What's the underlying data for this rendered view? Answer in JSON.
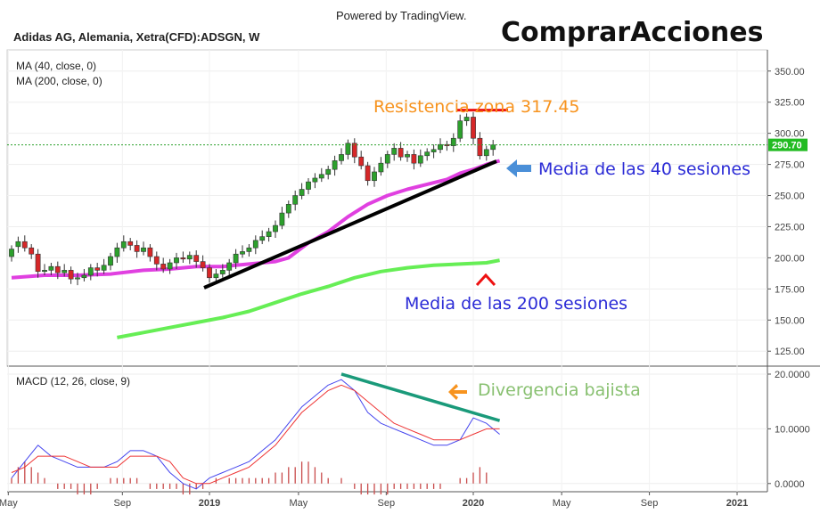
{
  "header": {
    "powered_by": "Powered by TradingView.",
    "brand": "ComprarAcciones",
    "symbol_title": "Adidas AG, Alemania, Xetra(CFD):ADSGN, W"
  },
  "indicators": {
    "ma40_label": "MA (40, close, 0)",
    "ma200_label": "MA (200, close, 0)",
    "macd_label": "MACD (12, 26, close, 9)"
  },
  "annotations": {
    "resistance": "Resistencia zona 317.45",
    "ma40_note": "Media de las 40 sesiones",
    "ma200_note": "Media de las 200 sesiones",
    "divergence": "Divergencia bajista"
  },
  "price_badge": "290.70",
  "colors": {
    "up": "#2ca02c",
    "down": "#d62728",
    "ma40": "#e040e0",
    "ma200": "#66ee55",
    "resistance": "#ee1111",
    "trendline": "#000000",
    "macd_line": "#4444ee",
    "signal_line": "#ee3333",
    "divergence_line": "#1a9a7a",
    "orange": "#f7931e",
    "blue_arrow": "#4a8fd8",
    "note_blue": "#2b2bd6",
    "note_green": "#88c070"
  },
  "chart_data": [
    {
      "type": "candlestick",
      "title": "Adidas AG, Alemania, Xetra(CFD):ADSGN, W",
      "x_tick_labels": [
        "May",
        "Sep",
        "2019",
        "May",
        "Sep",
        "2020",
        "May",
        "Sep",
        "2021"
      ],
      "y_ticks": [
        125.0,
        150.0,
        175.0,
        200.0,
        225.0,
        250.0,
        275.0,
        300.0,
        325.0,
        350.0
      ],
      "ylim": [
        113,
        367
      ],
      "last_price": 290.7,
      "resistance_level": 317.45,
      "series": [
        {
          "name": "MA (40, close, 0)",
          "values": [
            [
              0,
              184
            ],
            [
              5,
              186
            ],
            [
              10,
              186
            ],
            [
              15,
              187
            ],
            [
              20,
              190
            ],
            [
              24,
              191
            ],
            [
              28,
              193
            ],
            [
              32,
              193
            ],
            [
              36,
              195
            ],
            [
              40,
              197
            ],
            [
              42,
              200
            ],
            [
              45,
              212
            ],
            [
              48,
              221
            ],
            [
              51,
              233
            ],
            [
              54,
              243
            ],
            [
              57,
              250
            ],
            [
              60,
              255
            ],
            [
              63,
              259
            ],
            [
              66,
              263
            ],
            [
              68,
              268
            ],
            [
              70,
              271
            ],
            [
              72,
              275
            ],
            [
              74,
              278
            ]
          ]
        },
        {
          "name": "MA (200, close, 0)",
          "values": [
            [
              16,
              136
            ],
            [
              20,
              140
            ],
            [
              24,
              144
            ],
            [
              28,
              148
            ],
            [
              32,
              152
            ],
            [
              36,
              157
            ],
            [
              40,
              164
            ],
            [
              44,
              171
            ],
            [
              48,
              177
            ],
            [
              52,
              184
            ],
            [
              56,
              189
            ],
            [
              60,
              192
            ],
            [
              64,
              194
            ],
            [
              68,
              195
            ],
            [
              72,
              196
            ],
            [
              74,
              198
            ]
          ]
        }
      ],
      "candles": [
        [
          201,
          207
        ],
        [
          209,
          213
        ],
        [
          213,
          208
        ],
        [
          208,
          203
        ],
        [
          203,
          189
        ],
        [
          189,
          190
        ],
        [
          190,
          193
        ],
        [
          193,
          188
        ],
        [
          188,
          190
        ],
        [
          190,
          183
        ],
        [
          183,
          184
        ],
        [
          184,
          186
        ],
        [
          186,
          192
        ],
        [
          192,
          190
        ],
        [
          190,
          194
        ],
        [
          194,
          201
        ],
        [
          201,
          208
        ],
        [
          208,
          213
        ],
        [
          213,
          210
        ],
        [
          210,
          205
        ],
        [
          205,
          208
        ],
        [
          208,
          201
        ],
        [
          201,
          195
        ],
        [
          195,
          191
        ],
        [
          191,
          196
        ],
        [
          196,
          200
        ],
        [
          200,
          199
        ],
        [
          199,
          202
        ],
        [
          202,
          197
        ],
        [
          197,
          192
        ],
        [
          192,
          184
        ],
        [
          184,
          187
        ],
        [
          187,
          190
        ],
        [
          190,
          196
        ],
        [
          196,
          203
        ],
        [
          203,
          205
        ],
        [
          205,
          208
        ],
        [
          208,
          214
        ],
        [
          214,
          217
        ],
        [
          217,
          221
        ],
        [
          221,
          226
        ],
        [
          226,
          236
        ],
        [
          236,
          243
        ],
        [
          243,
          250
        ],
        [
          250,
          255
        ],
        [
          255,
          261
        ],
        [
          261,
          264
        ],
        [
          264,
          267
        ],
        [
          267,
          271
        ],
        [
          271,
          278
        ],
        [
          278,
          283
        ],
        [
          283,
          292
        ],
        [
          292,
          281
        ],
        [
          281,
          274
        ],
        [
          274,
          262
        ],
        [
          262,
          269
        ],
        [
          269,
          276
        ],
        [
          276,
          283
        ],
        [
          283,
          288
        ],
        [
          288,
          281
        ],
        [
          281,
          283
        ],
        [
          283,
          276
        ],
        [
          276,
          282
        ],
        [
          282,
          285
        ],
        [
          285,
          287
        ],
        [
          287,
          291
        ],
        [
          291,
          290
        ],
        [
          290,
          296
        ],
        [
          296,
          310
        ],
        [
          310,
          313
        ],
        [
          313,
          296
        ],
        [
          296,
          282
        ],
        [
          282,
          287
        ],
        [
          287,
          290.7
        ]
      ]
    },
    {
      "type": "line",
      "title": "MACD (12, 26, close, 9)",
      "y_ticks": [
        0.0,
        10.0,
        20.0
      ],
      "ylim": [
        -1.5,
        21.3
      ],
      "series": [
        {
          "name": "MACD",
          "values": [
            [
              0,
              1
            ],
            [
              2,
              4
            ],
            [
              4,
              7
            ],
            [
              6,
              5
            ],
            [
              8,
              4
            ],
            [
              10,
              3
            ],
            [
              12,
              3
            ],
            [
              14,
              3
            ],
            [
              16,
              4
            ],
            [
              18,
              6
            ],
            [
              20,
              6
            ],
            [
              22,
              5
            ],
            [
              24,
              2
            ],
            [
              26,
              0
            ],
            [
              28,
              -1
            ],
            [
              30,
              1
            ],
            [
              32,
              2
            ],
            [
              34,
              3
            ],
            [
              36,
              4
            ],
            [
              38,
              6
            ],
            [
              40,
              8
            ],
            [
              42,
              11
            ],
            [
              44,
              14
            ],
            [
              46,
              16
            ],
            [
              48,
              18
            ],
            [
              50,
              19
            ],
            [
              52,
              17
            ],
            [
              54,
              13
            ],
            [
              56,
              11
            ],
            [
              58,
              10
            ],
            [
              60,
              9
            ],
            [
              62,
              8
            ],
            [
              64,
              7
            ],
            [
              66,
              7
            ],
            [
              68,
              8
            ],
            [
              70,
              12
            ],
            [
              72,
              11
            ],
            [
              74,
              9
            ]
          ]
        },
        {
          "name": "Signal",
          "values": [
            [
              0,
              2
            ],
            [
              2,
              3
            ],
            [
              4,
              5
            ],
            [
              6,
              5
            ],
            [
              8,
              5
            ],
            [
              10,
              4
            ],
            [
              12,
              3
            ],
            [
              14,
              3
            ],
            [
              16,
              3
            ],
            [
              18,
              5
            ],
            [
              20,
              5
            ],
            [
              22,
              5
            ],
            [
              24,
              4
            ],
            [
              26,
              1
            ],
            [
              28,
              0
            ],
            [
              30,
              0
            ],
            [
              32,
              1
            ],
            [
              34,
              2
            ],
            [
              36,
              3
            ],
            [
              38,
              5
            ],
            [
              40,
              7
            ],
            [
              42,
              10
            ],
            [
              44,
              13
            ],
            [
              46,
              15
            ],
            [
              48,
              17
            ],
            [
              50,
              18
            ],
            [
              52,
              17
            ],
            [
              54,
              15
            ],
            [
              56,
              13
            ],
            [
              58,
              11
            ],
            [
              60,
              10
            ],
            [
              62,
              9
            ],
            [
              64,
              8
            ],
            [
              66,
              8
            ],
            [
              68,
              8
            ],
            [
              70,
              9
            ],
            [
              72,
              10
            ],
            [
              74,
              10
            ]
          ]
        }
      ],
      "histogram": [
        1,
        3,
        4,
        3,
        2,
        1,
        0,
        -1,
        -1,
        -1,
        -2,
        -2,
        -2,
        -1,
        0,
        1,
        1,
        1,
        1,
        1,
        0,
        -1,
        -1,
        -1,
        -1,
        -1,
        -2,
        -2,
        -1,
        -1,
        0,
        1,
        0,
        1,
        1,
        1,
        1,
        1,
        1,
        1,
        2,
        2,
        3,
        3,
        4,
        4,
        3,
        2,
        1,
        0,
        1,
        0,
        -1,
        -2,
        -2,
        -2,
        -2,
        -2,
        -1,
        -1,
        -1,
        -1,
        -1,
        -1,
        -1,
        -1,
        0,
        0,
        1,
        1,
        2,
        3,
        2,
        0
      ],
      "divergence_line": [
        [
          50,
          20
        ],
        [
          74,
          11.5
        ]
      ]
    }
  ]
}
